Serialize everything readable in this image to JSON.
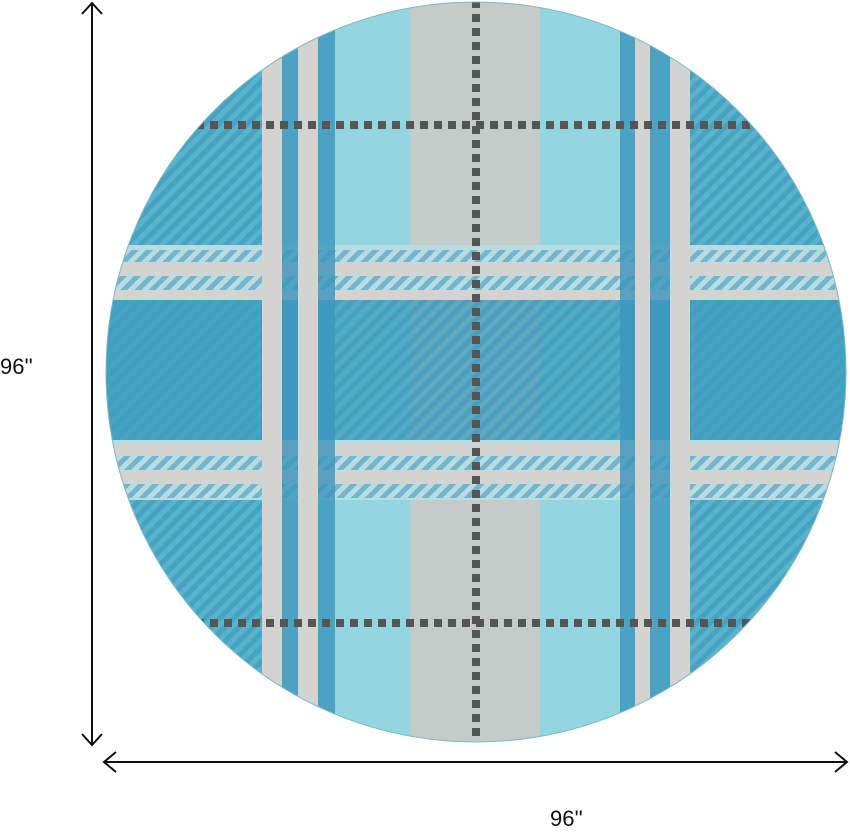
{
  "dimensions": {
    "height_label": "96''",
    "width_label": "96''"
  },
  "product": {
    "shape": "round",
    "pattern": "plaid",
    "colors": {
      "light_aqua": "#94d6e0",
      "teal": "#3d9dbd",
      "stripe_blue": "#3a95bb",
      "beige_gray": "#cdc9c4",
      "dark_line": "#5a5a5a"
    }
  }
}
